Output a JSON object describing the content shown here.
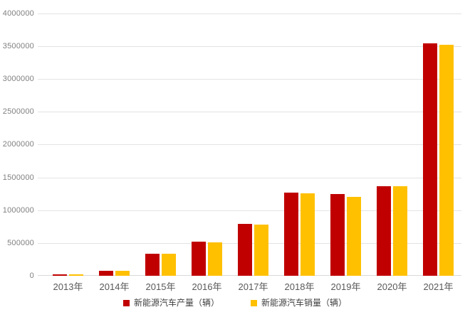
{
  "chart_data": {
    "type": "bar",
    "title": "",
    "xlabel": "",
    "ylabel": "",
    "categories": [
      "2013年",
      "2014年",
      "2015年",
      "2016年",
      "2017年",
      "2018年",
      "2019年",
      "2020年",
      "2021年"
    ],
    "series": [
      {
        "id": "production",
        "name": "新能源汽车产量（辆）",
        "color": "#C00000",
        "values": [
          17500,
          78500,
          340500,
          517000,
          794000,
          1270000,
          1242000,
          1366000,
          3545000
        ]
      },
      {
        "id": "sales",
        "name": "新能源汽车销量（辆）",
        "color": "#FFC000",
        "values": [
          17600,
          74800,
          331100,
          507000,
          777000,
          1256000,
          1206000,
          1367000,
          3521000
        ]
      }
    ],
    "ylim": [
      0,
      4000000
    ],
    "ytick_step": 500000,
    "ytick_labels": [
      "0",
      "500000",
      "1000000",
      "1500000",
      "2000000",
      "2500000",
      "3000000",
      "3500000",
      "4000000"
    ],
    "grid": true,
    "legend_position": "bottom"
  },
  "colors": {
    "background": "#FFFFFF",
    "gridline": "#E3E3E3",
    "baseline": "#D9D9D9",
    "y_tick_label": "#808080",
    "x_tick_label": "#595959",
    "legend_text": "#404040"
  }
}
